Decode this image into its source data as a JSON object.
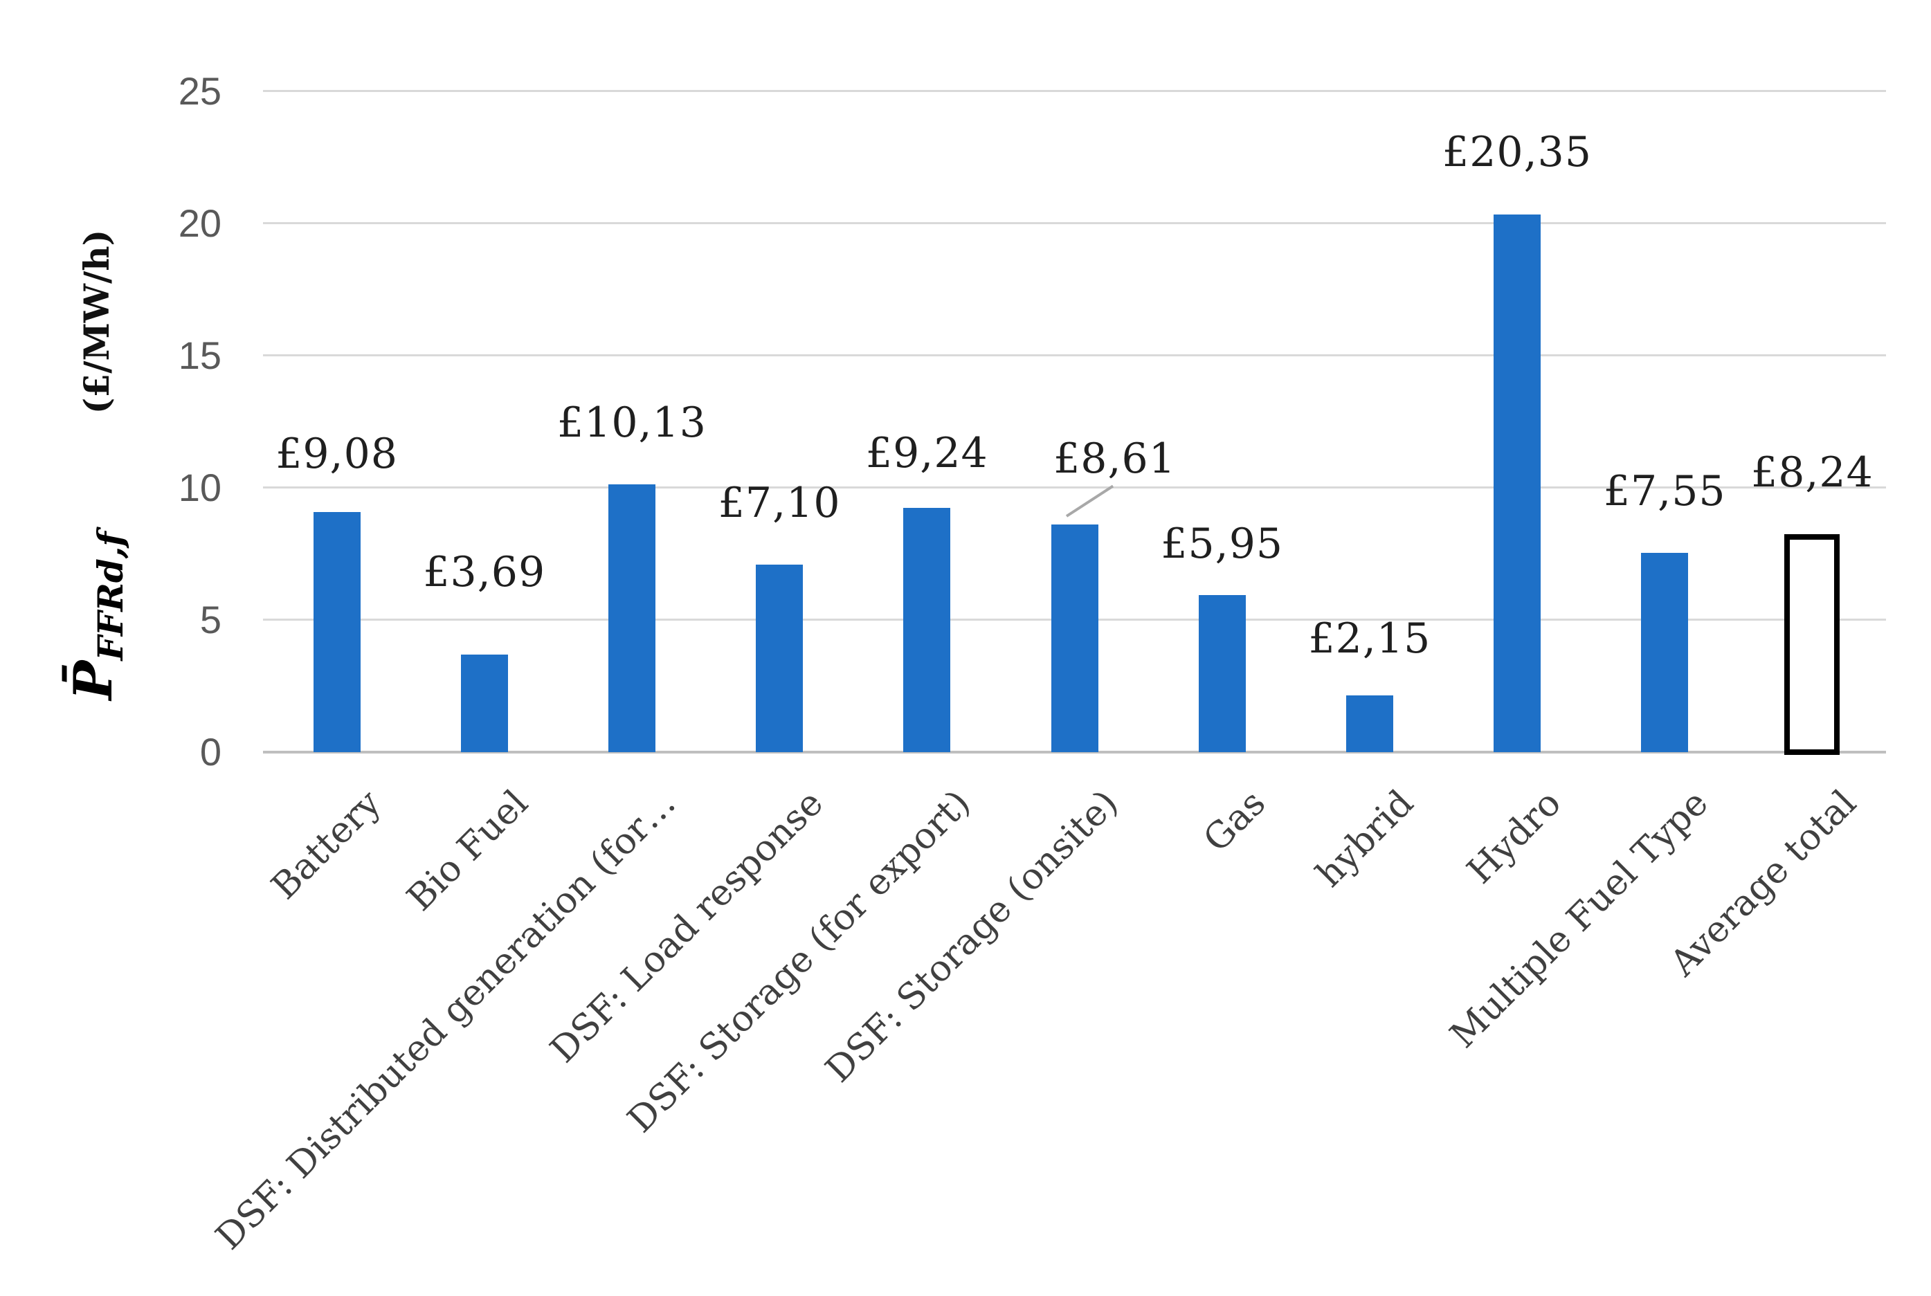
{
  "chart_data": {
    "type": "bar",
    "title": "",
    "ylabel": {
      "symbol": "P̄",
      "symbol_sub": "FFRd,f",
      "unit": "(£/MW/h)"
    },
    "ylim": [
      0,
      25
    ],
    "yticks": [
      0,
      5,
      10,
      15,
      20,
      25
    ],
    "grid": true,
    "legend": "none",
    "bar_color": "#1E70C7",
    "categories": [
      "Battery",
      "Bio Fuel",
      "DSF: Distributed generation (for…",
      "DSF: Load response",
      "DSF: Storage (for export)",
      "DSF: Storage (onsite)",
      "Gas",
      "hybrid",
      "Hydro",
      "Multiple Fuel Type",
      "Average total"
    ],
    "values": [
      9.08,
      3.69,
      10.13,
      7.1,
      9.24,
      8.61,
      5.95,
      2.15,
      20.35,
      7.55,
      8.24
    ],
    "data_labels": [
      "£9,08",
      "£3,69",
      "£10,13",
      "£7,10",
      "£9,24",
      "£8,61",
      "£5,95",
      "£2,15",
      "£20,35",
      "£7,55",
      "£8,24"
    ],
    "highlight": {
      "index": 10,
      "fill": "#FFFFFF",
      "border": "#000000"
    },
    "callout": {
      "index": 5
    }
  }
}
